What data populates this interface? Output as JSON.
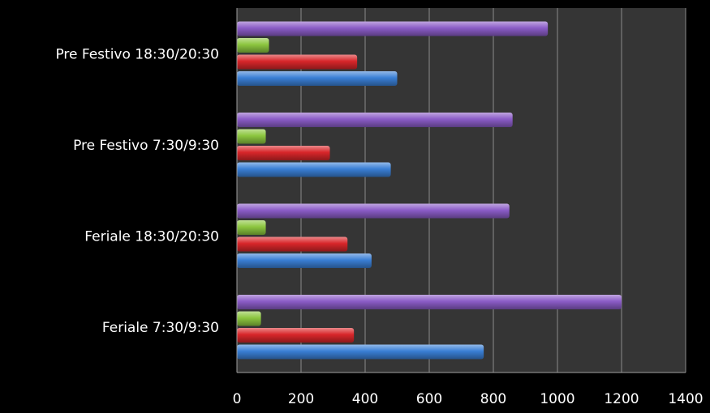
{
  "chart_data": {
    "type": "bar",
    "orientation": "horizontal",
    "title": "",
    "xlabel": "",
    "ylabel": "",
    "xlim": [
      0,
      1400
    ],
    "x_ticks": [
      0,
      200,
      400,
      600,
      800,
      1000,
      1200,
      1400
    ],
    "grid": "vertical",
    "legend": "none",
    "categories": [
      "Feriale 7:30/9:30",
      "Feriale 18:30/20:30",
      "Pre Festivo 7:30/9:30",
      "Pre Festivo 18:30/20:30"
    ],
    "series": [
      {
        "color": "#3a7fd5",
        "values": [
          770,
          420,
          480,
          500
        ]
      },
      {
        "color": "#d8262a",
        "values": [
          365,
          345,
          290,
          375
        ]
      },
      {
        "color": "#8cc63f",
        "values": [
          75,
          90,
          90,
          100
        ]
      },
      {
        "color": "#8b5cc7",
        "values": [
          1200,
          850,
          860,
          970
        ]
      }
    ],
    "colors": {
      "background": "#000000",
      "plot_area": "#353535",
      "gridline": "#8a8a8a",
      "axis": "#a0a0a0",
      "text": "#ffffff"
    }
  }
}
